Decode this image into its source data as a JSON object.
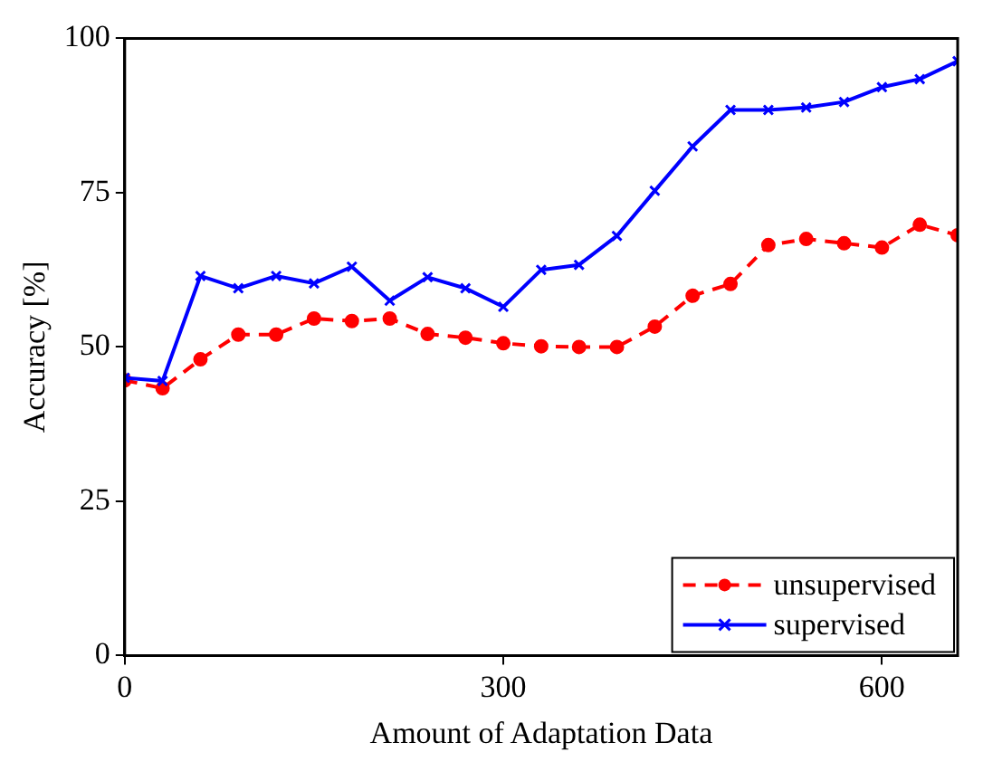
{
  "chart_data": {
    "type": "line",
    "xlabel": "Amount of Adaptation Data",
    "ylabel": "Accuracy [%]",
    "x": [
      0,
      30,
      60,
      90,
      120,
      150,
      180,
      210,
      240,
      270,
      300,
      330,
      360,
      390,
      420,
      450,
      480,
      510,
      540,
      570,
      600,
      630,
      660
    ],
    "series": [
      {
        "name": "unsupervised",
        "color": "#ff0000",
        "marker": "circle",
        "line_style": "dashed",
        "values": [
          44.6,
          43.3,
          48,
          52,
          52,
          54.6,
          54.2,
          54.6,
          52.1,
          51.5,
          50.6,
          50.1,
          50,
          50,
          53.3,
          58.3,
          60.2,
          66.5,
          67.5,
          66.8,
          66.1,
          69.8,
          68.1
        ]
      },
      {
        "name": "supervised",
        "color": "#0000ff",
        "marker": "cross",
        "line_style": "solid",
        "values": [
          45,
          44.5,
          61.5,
          59.5,
          61.5,
          60.3,
          63,
          57.5,
          61.3,
          59.5,
          56.5,
          62.5,
          63.3,
          68,
          75.3,
          82.5,
          88.4,
          88.4,
          88.8,
          89.7,
          92.1,
          93.4,
          96.3
        ]
      }
    ],
    "xlim": [
      0,
      660
    ],
    "xticks": [
      0,
      300,
      600
    ],
    "ylim": [
      0,
      100
    ],
    "yticks": [
      0,
      25,
      50,
      75,
      100
    ],
    "grid": false,
    "legend": "bottom right"
  }
}
